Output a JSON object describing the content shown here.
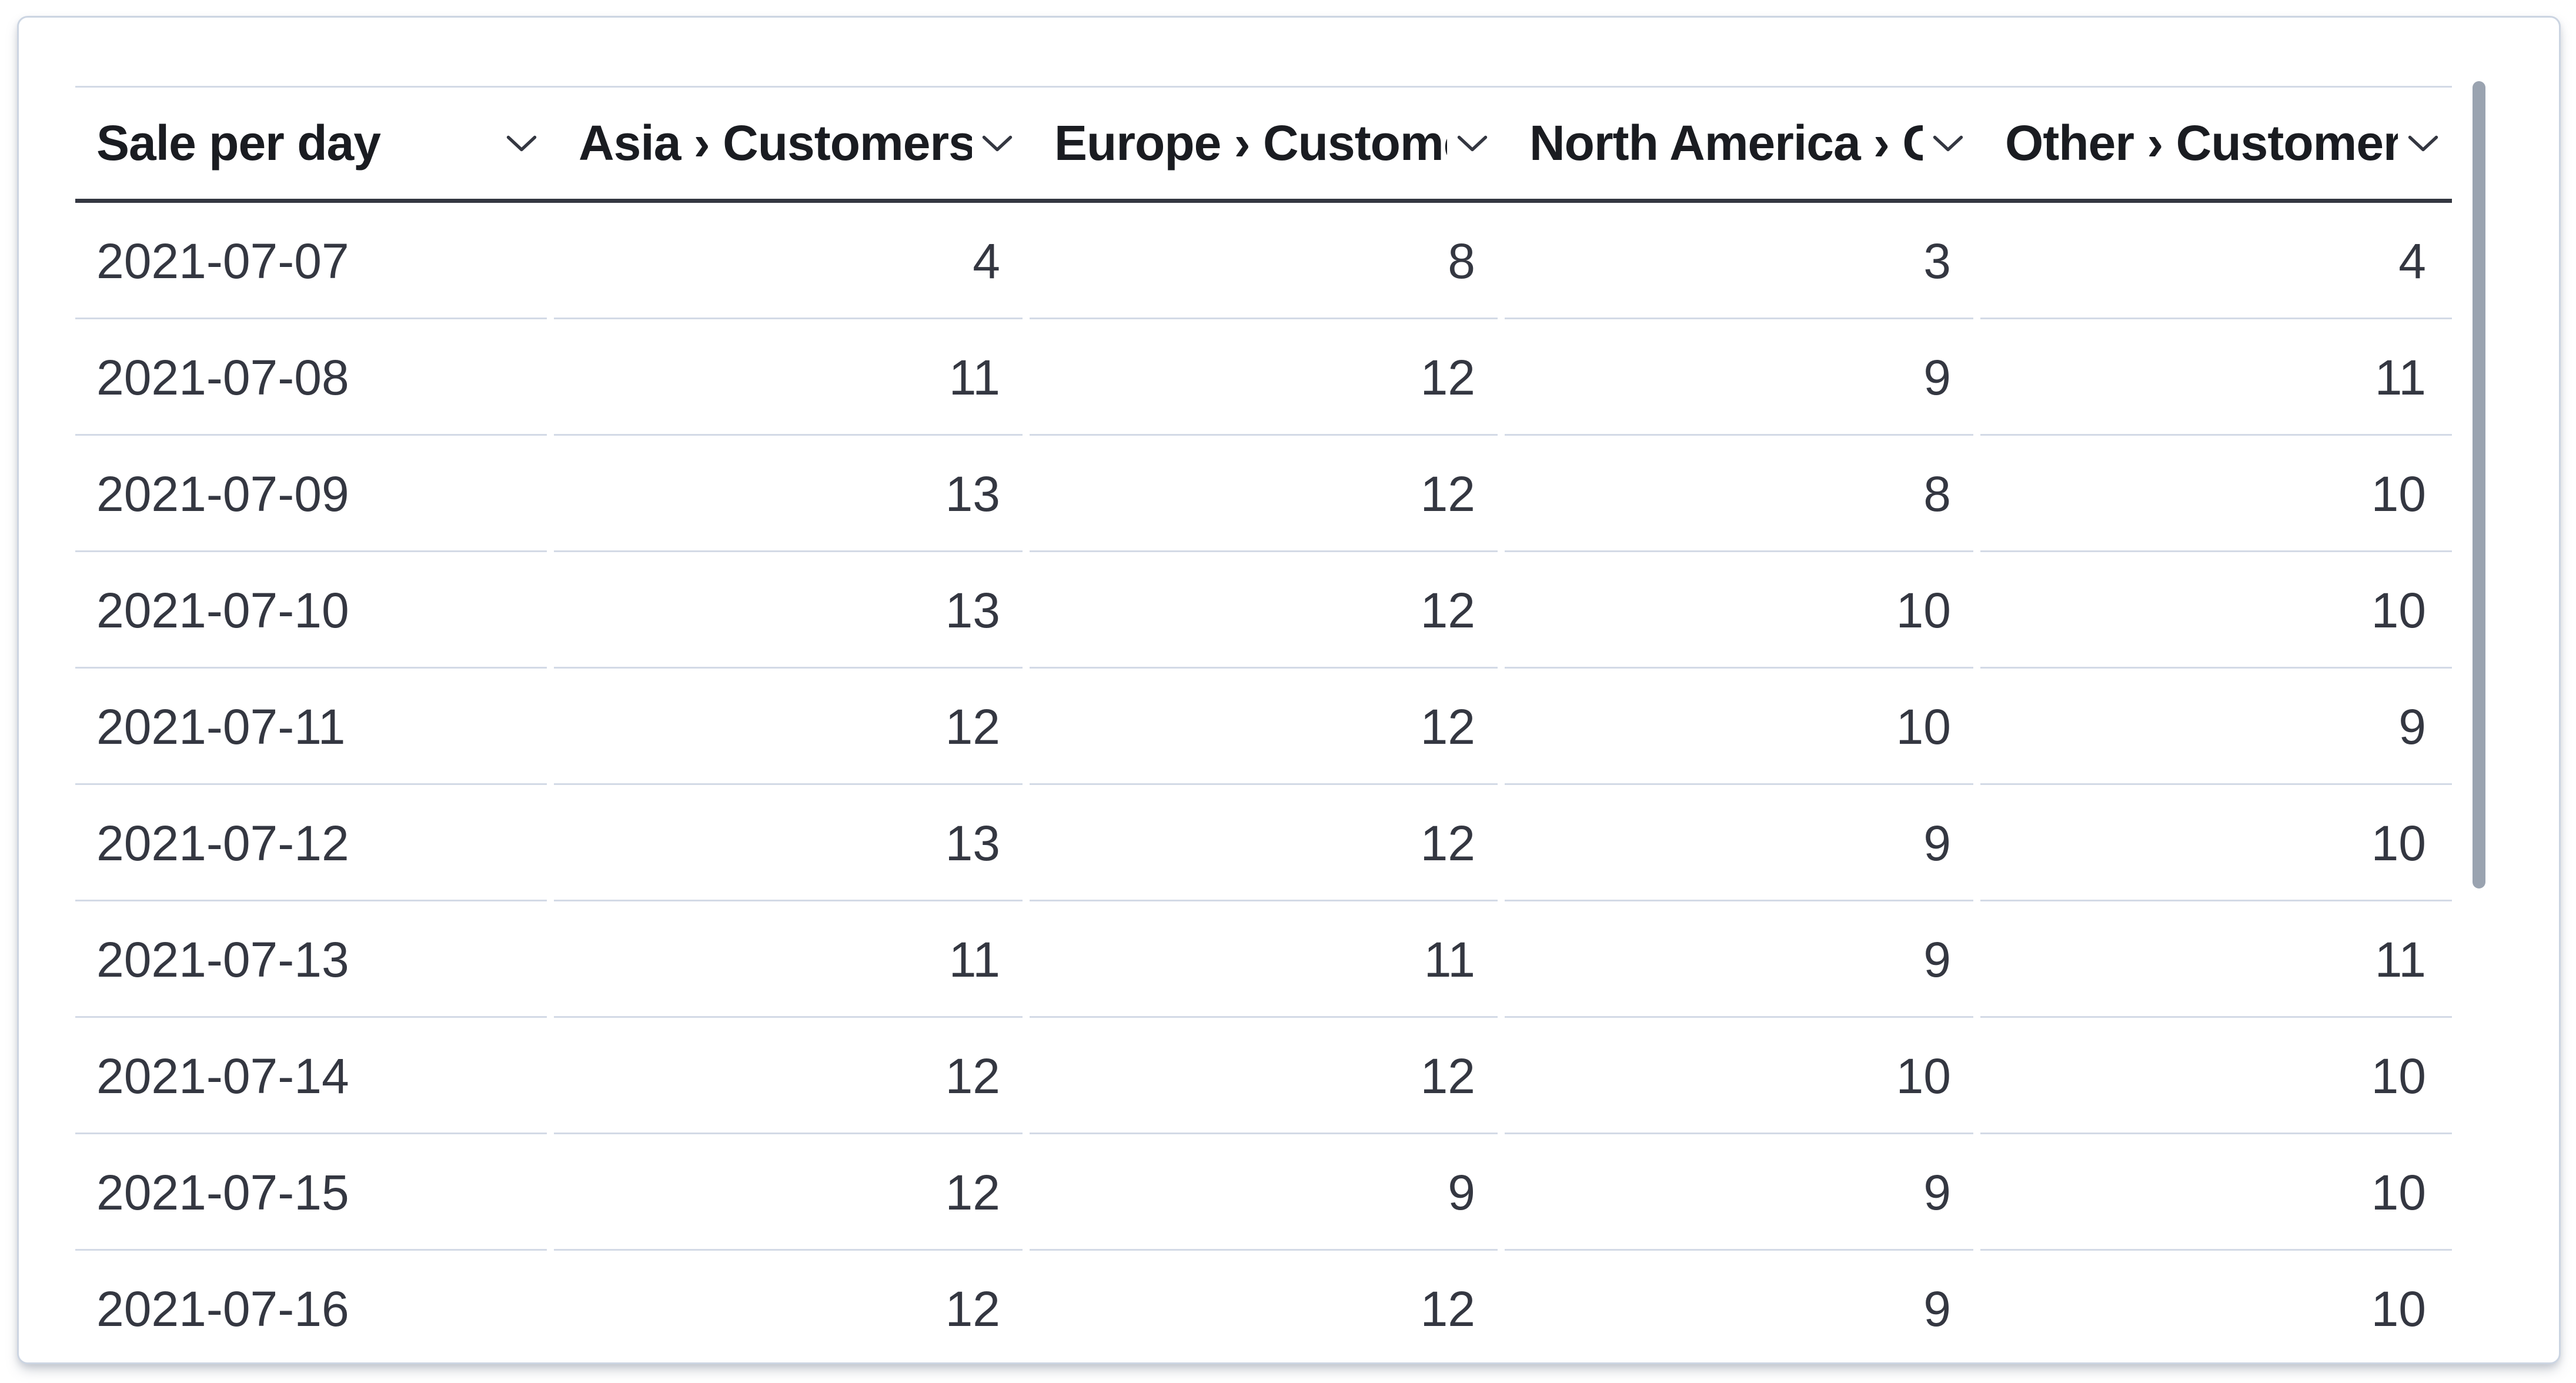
{
  "panel": {
    "type": "datatable-visualization",
    "title": "Sale per day"
  },
  "table": {
    "columns": [
      {
        "label": "Sale per day",
        "align": "left",
        "sort_icon": "chevron-down-icon"
      },
      {
        "label": "Asia › Customers",
        "align": "right",
        "sort_icon": "chevron-down-icon"
      },
      {
        "label": "Europe › Customers",
        "align": "right",
        "sort_icon": "chevron-down-icon"
      },
      {
        "label": "North America › Customers",
        "align": "right",
        "sort_icon": "chevron-down-icon"
      },
      {
        "label": "Other › Customers",
        "align": "right",
        "sort_icon": "chevron-down-icon"
      }
    ],
    "rows": [
      [
        "2021-07-07",
        "4",
        "8",
        "3",
        "4"
      ],
      [
        "2021-07-08",
        "11",
        "12",
        "9",
        "11"
      ],
      [
        "2021-07-09",
        "13",
        "12",
        "8",
        "10"
      ],
      [
        "2021-07-10",
        "13",
        "12",
        "10",
        "10"
      ],
      [
        "2021-07-11",
        "12",
        "12",
        "10",
        "9"
      ],
      [
        "2021-07-12",
        "13",
        "12",
        "9",
        "10"
      ],
      [
        "2021-07-13",
        "11",
        "11",
        "9",
        "11"
      ],
      [
        "2021-07-14",
        "12",
        "12",
        "10",
        "10"
      ],
      [
        "2021-07-15",
        "12",
        "9",
        "9",
        "10"
      ],
      [
        "2021-07-16",
        "12",
        "12",
        "9",
        "10"
      ]
    ]
  },
  "chart_data": {
    "type": "table",
    "title": "Sale per day",
    "categories": [
      "2021-07-07",
      "2021-07-08",
      "2021-07-09",
      "2021-07-10",
      "2021-07-11",
      "2021-07-12",
      "2021-07-13",
      "2021-07-14",
      "2021-07-15",
      "2021-07-16"
    ],
    "series": [
      {
        "name": "Asia › Customers",
        "values": [
          4,
          11,
          13,
          13,
          12,
          13,
          11,
          12,
          12,
          12
        ]
      },
      {
        "name": "Europe › Customers",
        "values": [
          8,
          12,
          12,
          12,
          12,
          12,
          11,
          12,
          9,
          12
        ]
      },
      {
        "name": "North America › Customers",
        "values": [
          3,
          9,
          8,
          10,
          10,
          9,
          9,
          10,
          9,
          9
        ]
      },
      {
        "name": "Other › Customers",
        "values": [
          4,
          11,
          10,
          10,
          9,
          10,
          11,
          10,
          10,
          10
        ]
      }
    ]
  },
  "scrollbar": {
    "orientation": "vertical",
    "thumb_color": "#9aa3b0"
  },
  "colors": {
    "page_background": "#ffffff",
    "panel_background": "#ffffff",
    "panel_border": "#ccd5e2",
    "header_text": "#1a1c21",
    "header_underline": "#343741",
    "body_text": "#343741",
    "row_separator": "#d3dae6",
    "icon": "#343741"
  }
}
